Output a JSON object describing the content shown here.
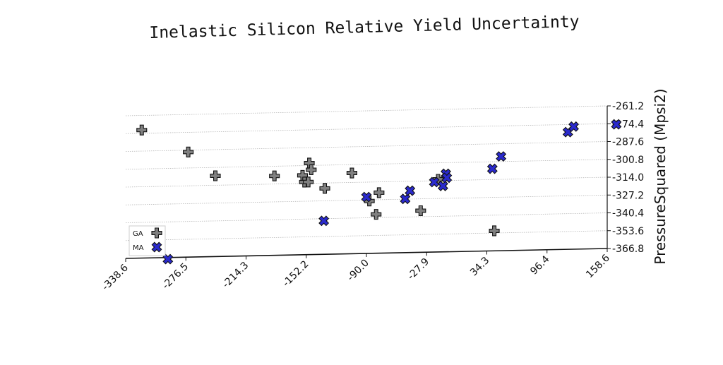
{
  "chart_data": {
    "type": "scatter",
    "title": "Inelastic Silicon Relative Yield Uncertainty",
    "xlabel": "",
    "ylabel": "PressureSquared (Mpsi2)",
    "x_ticks": [
      "-338.6",
      "-276.5",
      "-214.3",
      "-152.2",
      "-90.0",
      "-27.9",
      "34.3",
      "96.4",
      "158.6"
    ],
    "y_ticks": [
      "-261.2",
      "-274.4",
      "-287.6",
      "-300.8",
      "-314.0",
      "-327.2",
      "-340.4",
      "-353.6",
      "-366.8"
    ],
    "xlim": [
      -338.6,
      158.6
    ],
    "ylim": [
      -366.8,
      -261.2
    ],
    "grid": "horizontal",
    "legend_position": "bottom-left",
    "series": [
      {
        "name": "GA",
        "marker": "plus",
        "color": "#808080",
        "points": [
          {
            "x": -322,
            "y": -272
          },
          {
            "x": -274,
            "y": -289
          },
          {
            "x": -246,
            "y": -307
          },
          {
            "x": -185,
            "y": -308
          },
          {
            "x": -156,
            "y": -308
          },
          {
            "x": -154,
            "y": -313
          },
          {
            "x": -150,
            "y": -313
          },
          {
            "x": -149,
            "y": -299
          },
          {
            "x": -147,
            "y": -304
          },
          {
            "x": -133,
            "y": -318
          },
          {
            "x": -105,
            "y": -307
          },
          {
            "x": -87,
            "y": -328
          },
          {
            "x": -80,
            "y": -338
          },
          {
            "x": -77,
            "y": -322
          },
          {
            "x": -34,
            "y": -336
          },
          {
            "x": -16,
            "y": -313
          },
          {
            "x": 42,
            "y": -352
          }
        ]
      },
      {
        "name": "MA",
        "marker": "x",
        "color": "#2a2acc",
        "points": [
          {
            "x": -295,
            "y": -368
          },
          {
            "x": -134,
            "y": -342
          },
          {
            "x": -90,
            "y": -325
          },
          {
            "x": -50,
            "y": -327
          },
          {
            "x": -45,
            "y": -321
          },
          {
            "x": -20,
            "y": -315
          },
          {
            "x": -11,
            "y": -318
          },
          {
            "x": -8,
            "y": -309
          },
          {
            "x": -7,
            "y": -312
          },
          {
            "x": 40,
            "y": -306
          },
          {
            "x": 49,
            "y": -297
          },
          {
            "x": 118,
            "y": -280
          },
          {
            "x": 124,
            "y": -276
          },
          {
            "x": 168,
            "y": -275
          }
        ]
      }
    ]
  },
  "legend": {
    "items": [
      {
        "label": "GA"
      },
      {
        "label": "MA"
      }
    ]
  }
}
